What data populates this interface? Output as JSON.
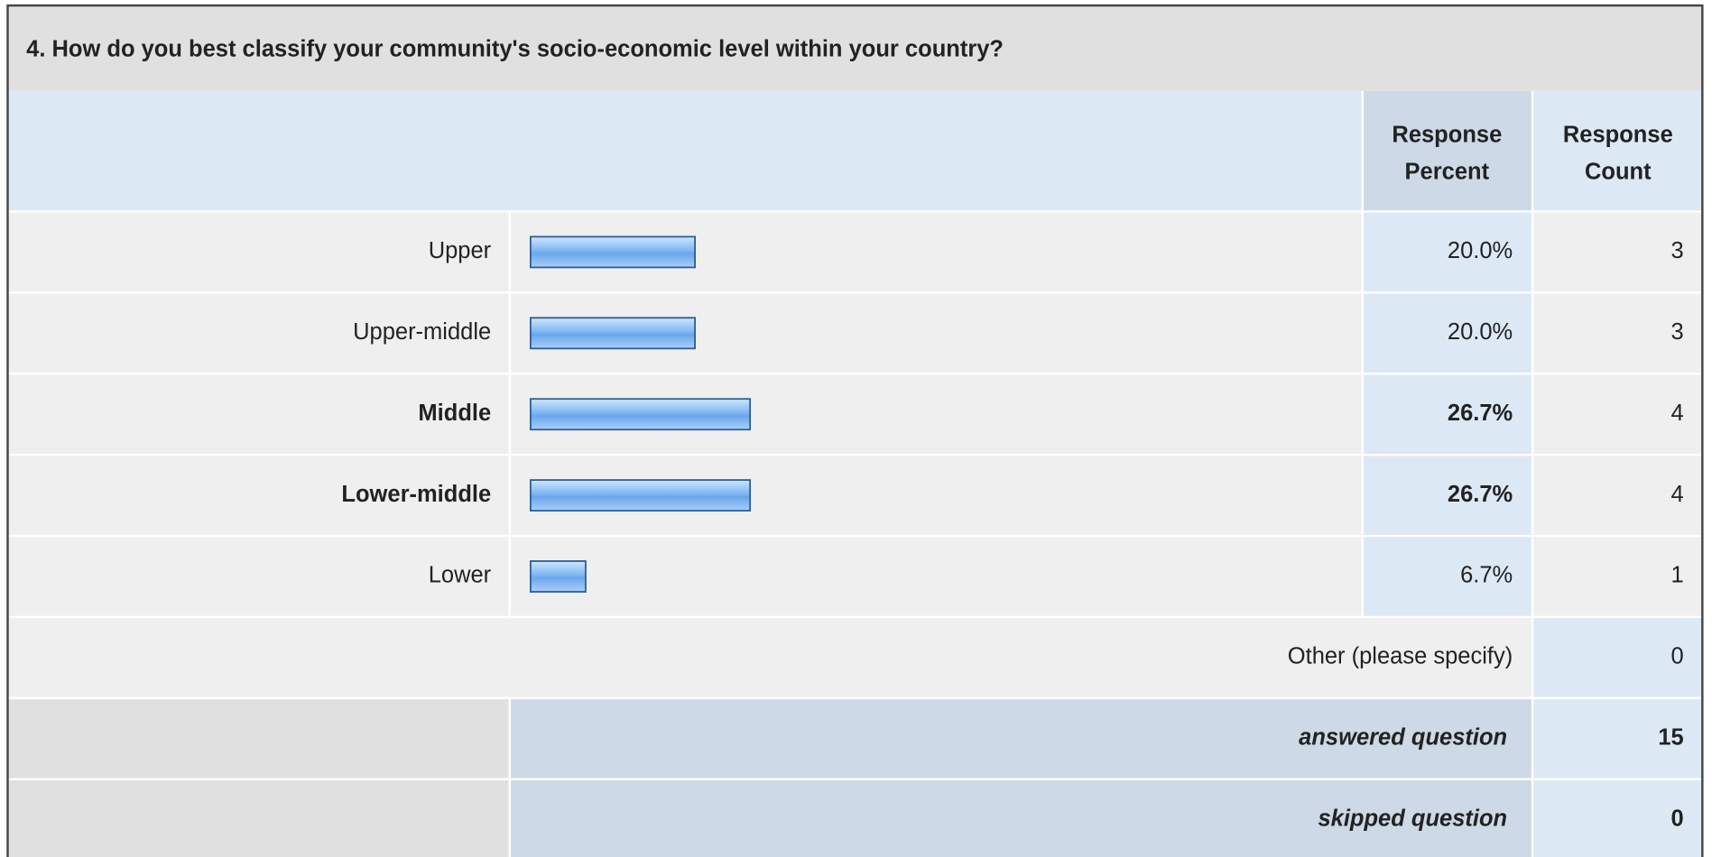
{
  "title": "4. How do you best classify your community's socio-economic level within your country?",
  "header": {
    "percent": [
      "Response",
      "Percent"
    ],
    "count": [
      "Response",
      "Count"
    ]
  },
  "rows": [
    {
      "label": "Upper",
      "percent": 20.0,
      "percent_label": "20.0%",
      "count": 3,
      "bold": false
    },
    {
      "label": "Upper-middle",
      "percent": 20.0,
      "percent_label": "20.0%",
      "count": 3,
      "bold": false
    },
    {
      "label": "Middle",
      "percent": 26.7,
      "percent_label": "26.7%",
      "count": 4,
      "bold": true
    },
    {
      "label": "Lower-middle",
      "percent": 26.7,
      "percent_label": "26.7%",
      "count": 4,
      "bold": true
    },
    {
      "label": "Lower",
      "percent": 6.7,
      "percent_label": "6.7%",
      "count": 1,
      "bold": false
    }
  ],
  "other": {
    "label": "Other (please specify)",
    "count": 0
  },
  "answered": {
    "label": "answered question",
    "count": 15
  },
  "skipped": {
    "label": "skipped question",
    "count": 0
  }
}
